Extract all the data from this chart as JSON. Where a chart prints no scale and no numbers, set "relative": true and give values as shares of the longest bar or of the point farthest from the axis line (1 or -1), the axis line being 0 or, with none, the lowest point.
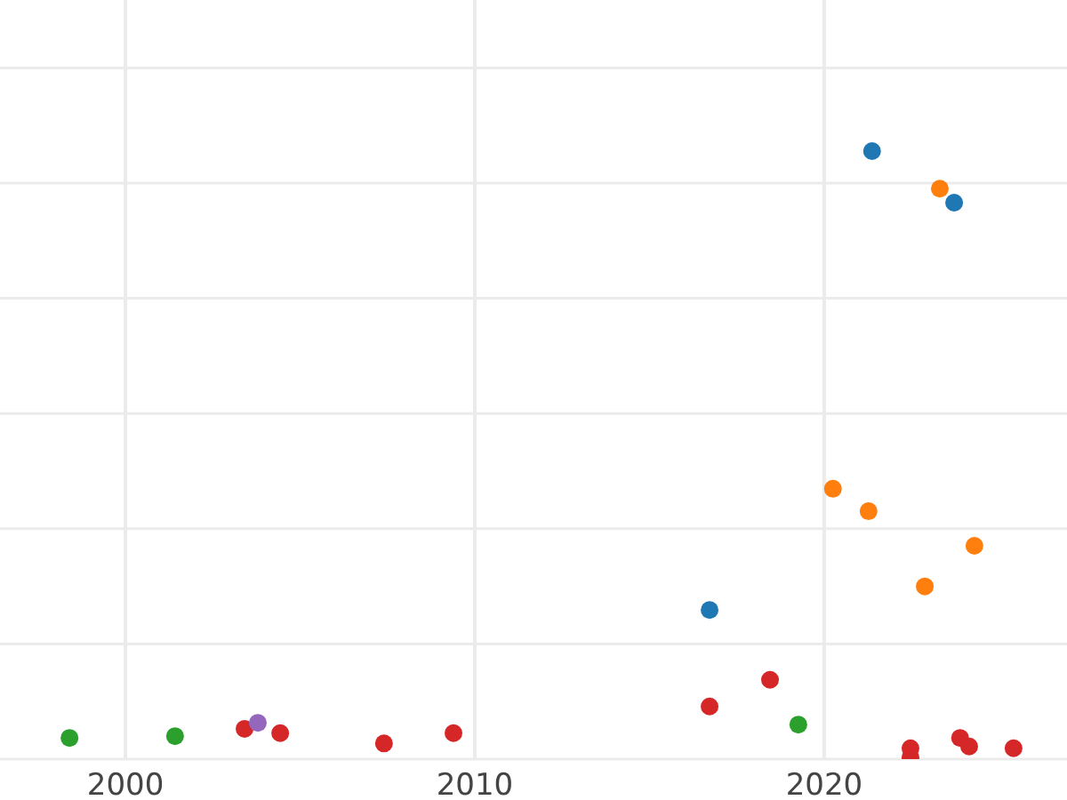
{
  "chart_data": {
    "type": "scatter",
    "relative": true,
    "grid": true,
    "marker": "circle",
    "xlim": [
      1996.41,
      2026.95
    ],
    "xticks": [
      2000,
      2010,
      2020
    ],
    "tick_labels": "x",
    "series": [
      {
        "color": "#1f77b4",
        "x": [
          2021.37,
          2023.72,
          2016.72
        ],
        "values": [
          1,
          0.915,
          0.243
        ]
      },
      {
        "color": "#ff7f0e",
        "x": [
          2023.31,
          2020.25,
          2021.27,
          2024.3,
          2022.88
        ],
        "values": [
          0.938,
          0.443,
          0.406,
          0.349,
          0.282
        ]
      },
      {
        "color": "#2ca02c",
        "x": [
          1998.4,
          2001.42,
          2019.26
        ],
        "values": [
          0.032,
          0.035,
          0.054
        ]
      },
      {
        "color": "#d62728",
        "x": [
          2003.41,
          2004.43,
          2007.4,
          2009.39,
          2016.72,
          2018.45,
          2022.47,
          2022.47,
          2023.89,
          2024.15,
          2025.42
        ],
        "values": [
          0.047,
          0.04,
          0.023,
          0.04,
          0.084,
          0.128,
          0.015,
          0,
          0.032,
          0.018,
          0.015
        ]
      },
      {
        "color": "#9467bd",
        "x": [
          2003.79
        ],
        "values": [
          0.057
        ]
      }
    ]
  }
}
